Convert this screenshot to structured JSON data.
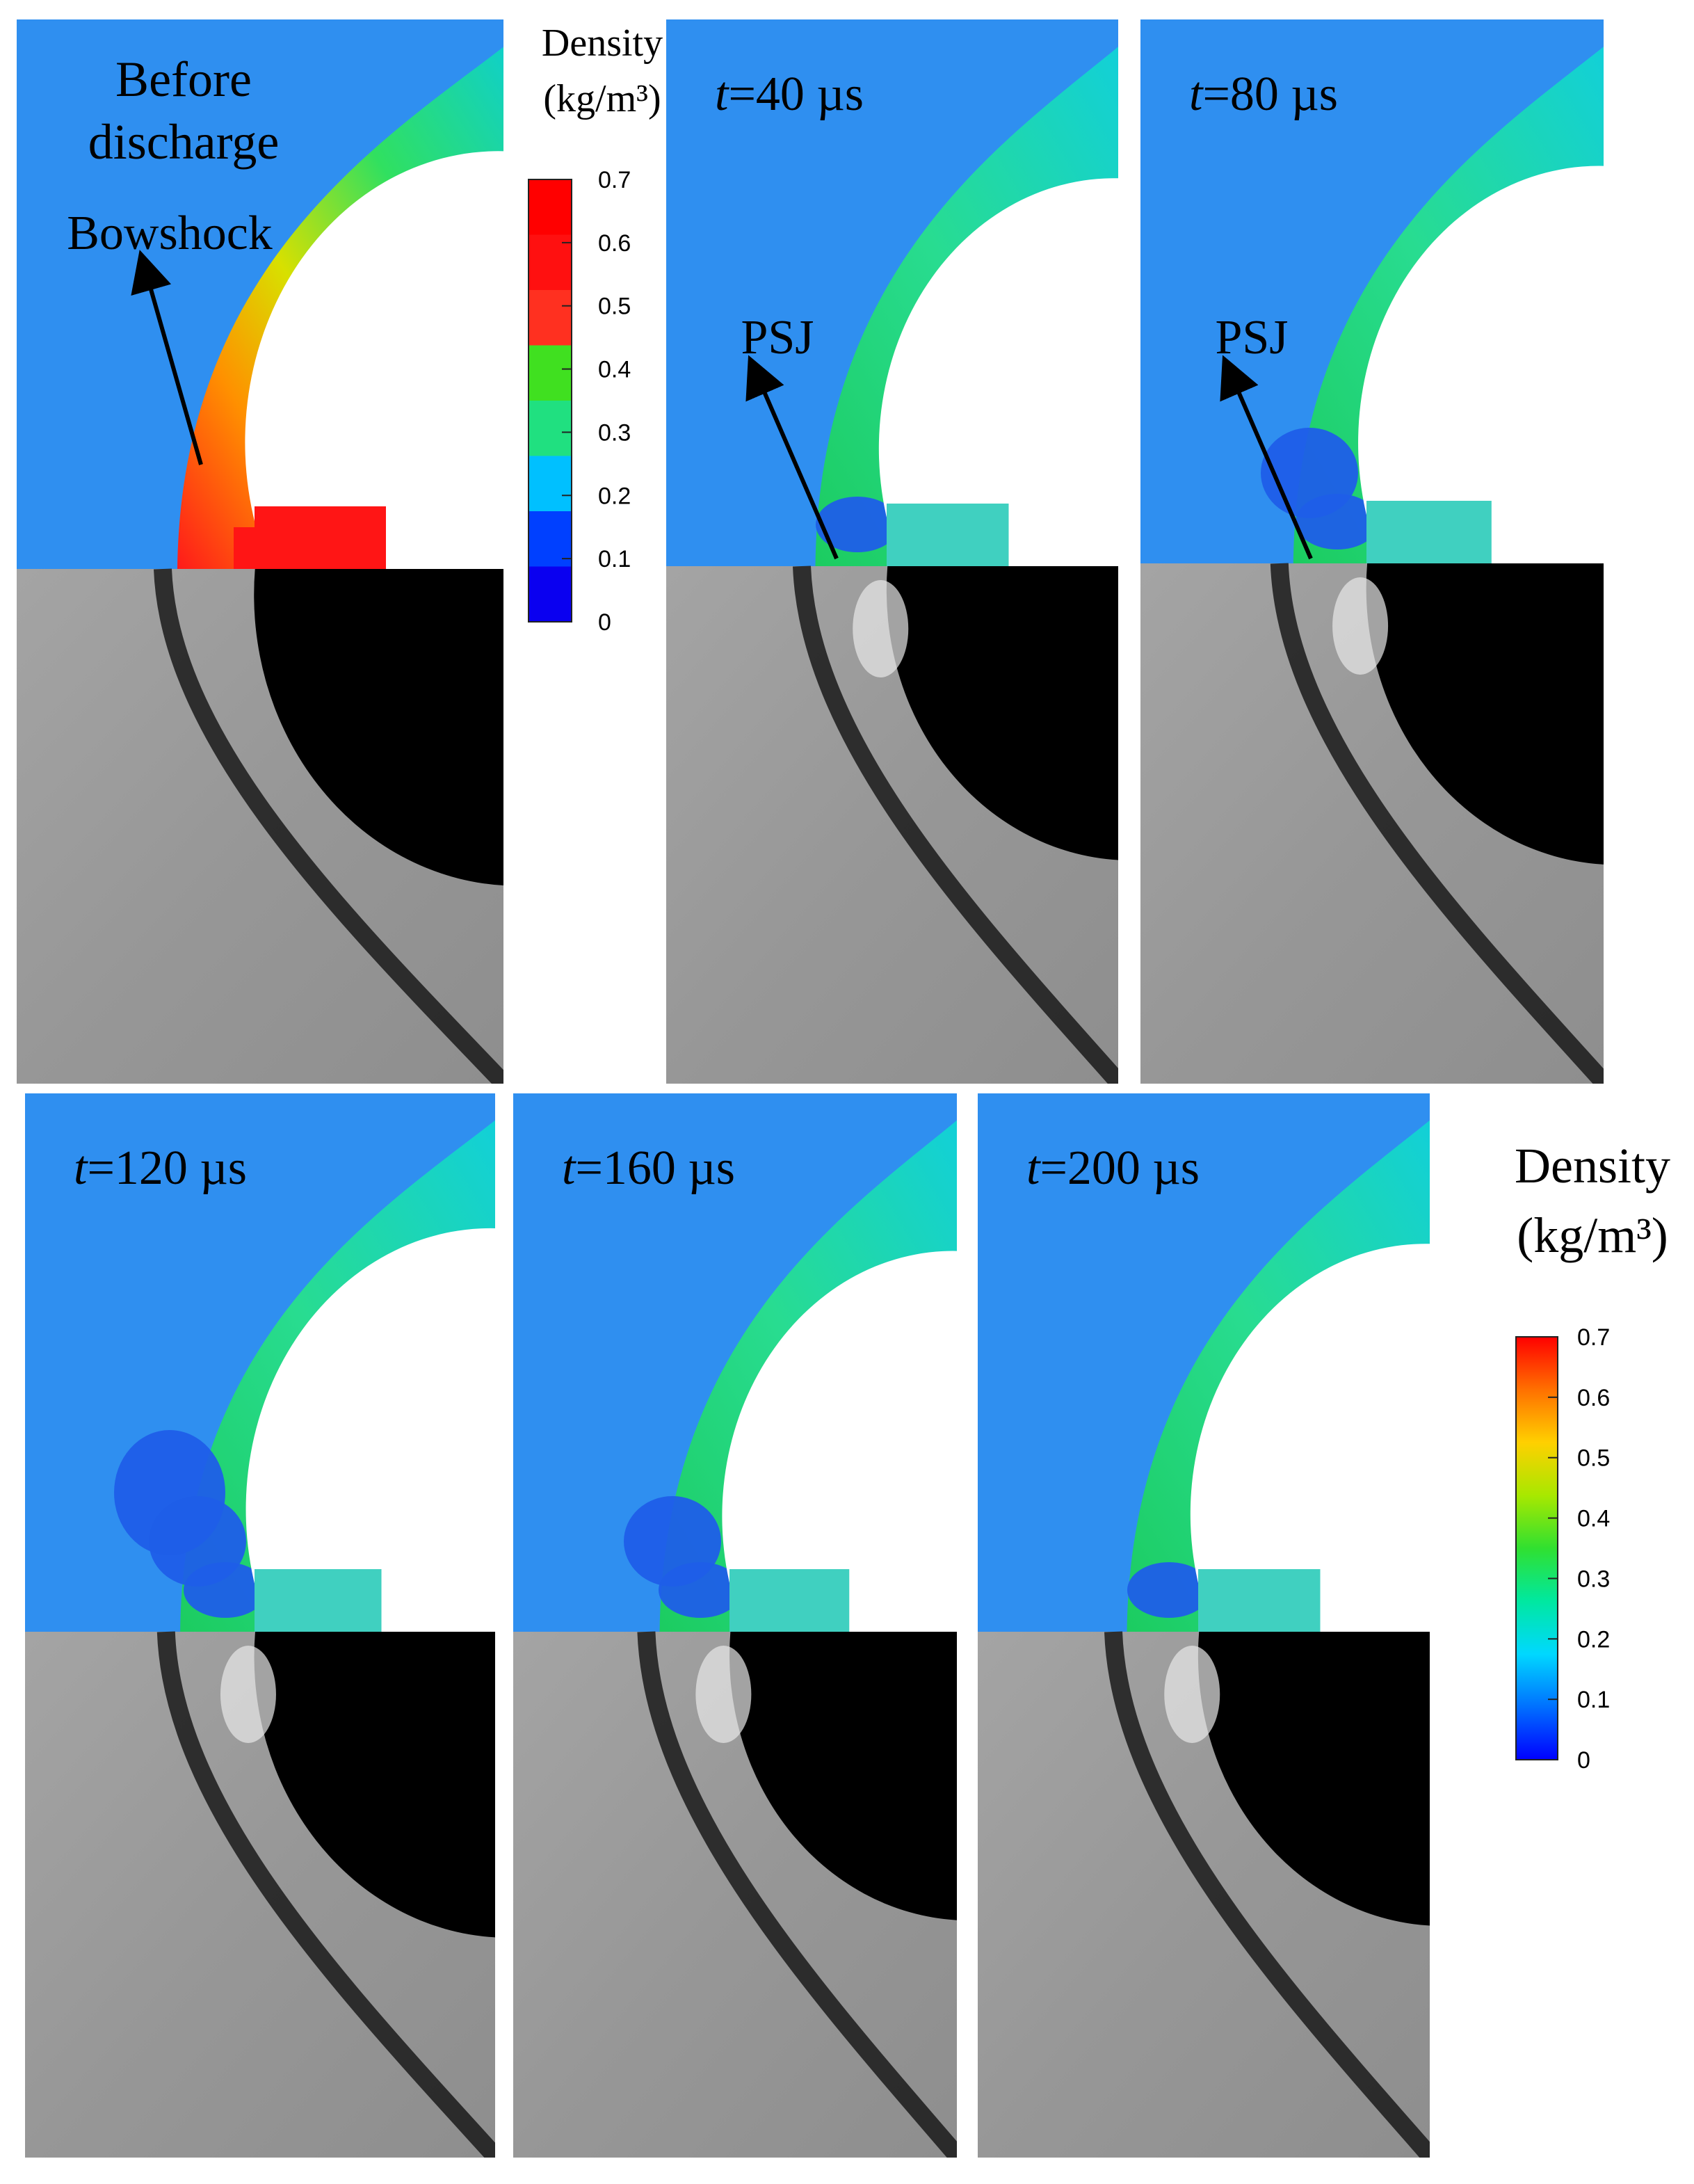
{
  "figure": {
    "panels": [
      {
        "time_var": "",
        "time_value": "",
        "caption_line1": "Before",
        "caption_line2": "discharge",
        "annotation": "Bowshock",
        "jet_level": 0
      },
      {
        "time_var": "t",
        "time_value": "=40 µs",
        "caption_line1": "",
        "caption_line2": "",
        "annotation": "PSJ",
        "jet_level": 1
      },
      {
        "time_var": "t",
        "time_value": "=80 µs",
        "caption_line1": "",
        "caption_line2": "",
        "annotation": "PSJ",
        "jet_level": 2
      },
      {
        "time_var": "t",
        "time_value": "=120 µs",
        "caption_line1": "",
        "caption_line2": "",
        "annotation": "",
        "jet_level": 3
      },
      {
        "time_var": "t",
        "time_value": "=160 µs",
        "caption_line1": "",
        "caption_line2": "",
        "annotation": "",
        "jet_level": 2
      },
      {
        "time_var": "t",
        "time_value": "=200 µs",
        "caption_line1": "",
        "caption_line2": "",
        "annotation": "",
        "jet_level": 1
      }
    ],
    "colorbars": [
      {
        "title_line1": "Density",
        "title_line2": "(kg/m³)",
        "ticks": [
          "0.7",
          "0.6",
          "0.5",
          "0.4",
          "0.3",
          "0.2",
          "0.1",
          "0"
        ],
        "style": "steps"
      },
      {
        "title_line1": "Density",
        "title_line2": "(kg/m³)",
        "ticks": [
          "0.7",
          "0.6",
          "0.5",
          "0.4",
          "0.3",
          "0.2",
          "0.1",
          "0"
        ],
        "style": "smooth"
      }
    ],
    "colors": {
      "freestream": "#2f8ff0",
      "density_max": "#e21a1a",
      "density_min": "#0010e0",
      "shadow_bg": "#9a9a9a",
      "body_fill": "#000000",
      "arrow": "#000000"
    },
    "colormap": [
      "#0000ff",
      "#0070ff",
      "#00d8ff",
      "#00e8a0",
      "#30e030",
      "#a8e800",
      "#ffd000",
      "#ff7000",
      "#ff0000"
    ]
  }
}
